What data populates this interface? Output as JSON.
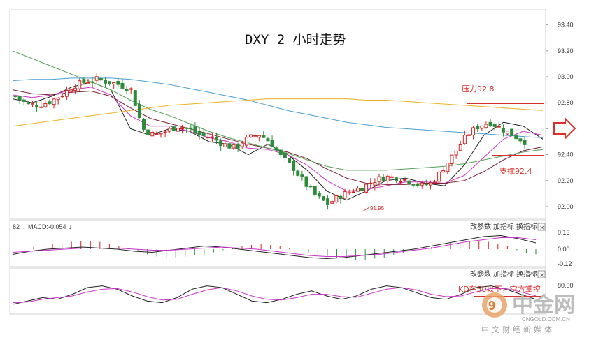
{
  "chart_data": [
    {
      "type": "candlestick",
      "title": "DXY 2 小时走势",
      "ylim": [
        91.95,
        93.45
      ],
      "y_ticks": [
        "93.40",
        "93.20",
        "93.00",
        "92.80",
        "92.60",
        "92.40",
        "92.20",
        "92.00"
      ],
      "close_path": [
        92.85,
        92.79,
        92.78,
        92.81,
        92.86,
        92.93,
        92.96,
        92.98,
        92.96,
        92.94,
        92.9,
        92.6,
        92.55,
        92.58,
        92.62,
        92.6,
        92.55,
        92.53,
        92.48,
        92.45,
        92.52,
        92.56,
        92.5,
        92.38,
        92.3,
        92.18,
        92.08,
        92.02,
        92.08,
        92.12,
        92.15,
        92.2,
        92.23,
        92.22,
        92.2,
        92.16,
        92.18,
        92.3,
        92.42,
        92.55,
        92.62,
        92.65,
        92.6,
        92.55,
        92.5
      ],
      "low_label": "91.95",
      "annotations": [
        {
          "id": "resistance",
          "label": "压力92.8",
          "value": 92.8,
          "color": "#d9302c"
        },
        {
          "id": "support",
          "label": "支撑92.4",
          "value": 92.4,
          "color": "#d9302c"
        }
      ],
      "ma_lines": [
        {
          "name": "MA5",
          "color": "#222222",
          "values": [
            92.83,
            92.8,
            92.85,
            92.92,
            92.96,
            92.9,
            92.6,
            92.55,
            92.6,
            92.58,
            92.5,
            92.48,
            92.4,
            92.48,
            92.4,
            92.28,
            92.12,
            92.05,
            92.12,
            92.2,
            92.22,
            92.18,
            92.16,
            92.32,
            92.55,
            92.65,
            92.62,
            92.52
          ]
        },
        {
          "name": "MA10",
          "color": "#cc33cc",
          "values": [
            92.86,
            92.84,
            92.86,
            92.9,
            92.92,
            92.86,
            92.7,
            92.62,
            92.62,
            92.58,
            92.53,
            92.5,
            92.45,
            92.44,
            92.4,
            92.32,
            92.2,
            92.12,
            92.13,
            92.16,
            92.19,
            92.19,
            92.18,
            92.24,
            92.38,
            92.52,
            92.58,
            92.55
          ]
        },
        {
          "name": "MA20",
          "color": "#7a1f33",
          "values": [
            92.9,
            92.87,
            92.86,
            92.88,
            92.89,
            92.85,
            92.76,
            92.68,
            92.64,
            92.6,
            92.56,
            92.52,
            92.48,
            92.45,
            92.42,
            92.37,
            92.29,
            92.22,
            92.18,
            92.17,
            92.17,
            92.18,
            92.18,
            92.2,
            92.27,
            92.36,
            92.43,
            92.46
          ]
        },
        {
          "name": "MA30",
          "color": "#55a055",
          "values": [
            93.2,
            93.14,
            93.08,
            93.02,
            92.96,
            92.9,
            92.82,
            92.75,
            92.7,
            92.64,
            92.58,
            92.53,
            92.49,
            92.45,
            92.41,
            92.36,
            92.31,
            92.28,
            92.28,
            92.28,
            92.29,
            92.3,
            92.31,
            92.33,
            92.36,
            92.39,
            92.42,
            92.44
          ]
        },
        {
          "name": "MA60",
          "color": "#4aa0d8",
          "values": [
            92.97,
            92.98,
            92.98,
            92.99,
            92.99,
            92.99,
            92.98,
            92.96,
            92.94,
            92.91,
            92.88,
            92.85,
            92.82,
            92.78,
            92.74,
            92.71,
            92.68,
            92.65,
            92.63,
            92.61,
            92.6,
            92.59,
            92.58,
            92.57,
            92.56,
            92.55,
            92.54,
            92.53
          ]
        },
        {
          "name": "MA120",
          "color": "#f0b020",
          "values": [
            92.62,
            92.64,
            92.66,
            92.68,
            92.7,
            92.72,
            92.74,
            92.76,
            92.78,
            92.79,
            92.8,
            92.81,
            92.82,
            92.83,
            92.83,
            92.83,
            92.83,
            92.83,
            92.82,
            92.82,
            92.81,
            92.8,
            92.79,
            92.78,
            92.77,
            92.76,
            92.75,
            92.74
          ]
        }
      ]
    },
    {
      "type": "histogram",
      "label": "MACD:-0.054",
      "y_ticks": [
        "0.13",
        "0.00",
        "-0.12"
      ],
      "histogram": [
        0.02,
        0.04,
        0.05,
        0.06,
        0.07,
        0.08,
        0.08,
        0.07,
        0.05,
        0.03,
        0.01,
        -0.02,
        -0.05,
        -0.07,
        -0.08,
        -0.08,
        -0.07,
        -0.06,
        -0.05,
        -0.03,
        -0.01,
        0.01,
        0.03,
        0.04,
        0.05,
        0.04,
        0.03,
        0.01,
        -0.01,
        -0.03,
        -0.05,
        -0.07,
        -0.08,
        -0.09,
        -0.1,
        -0.1,
        -0.09,
        -0.08,
        -0.06,
        -0.04,
        -0.02,
        0.0,
        0.02,
        0.04,
        0.06,
        0.07,
        0.08,
        0.08,
        0.07,
        0.05,
        0.03,
        -0.01,
        -0.04,
        -0.05
      ],
      "dif": [
        -0.05,
        -0.02,
        0.0,
        0.01,
        0.02,
        0.01,
        0.0,
        -0.02,
        -0.03,
        -0.01,
        0.01,
        0.03,
        0.02,
        0.0,
        -0.02,
        -0.04,
        -0.06,
        -0.08,
        -0.09,
        -0.08,
        -0.06,
        -0.04,
        -0.02,
        0.0,
        0.03,
        0.06,
        0.09,
        0.12,
        0.13,
        0.1,
        0.06
      ],
      "dea": [
        -0.03,
        -0.02,
        -0.01,
        0.0,
        0.01,
        0.01,
        0.01,
        0.0,
        -0.01,
        -0.01,
        0.0,
        0.01,
        0.02,
        0.01,
        0.0,
        -0.02,
        -0.04,
        -0.06,
        -0.07,
        -0.07,
        -0.06,
        -0.05,
        -0.03,
        -0.01,
        0.01,
        0.04,
        0.07,
        0.09,
        0.11,
        0.11,
        0.09
      ]
    },
    {
      "type": "line",
      "label": "KD在50以下，空方掌控",
      "y_ticks": [
        "80.00"
      ],
      "k": [
        25,
        35,
        45,
        40,
        55,
        75,
        80,
        70,
        50,
        35,
        30,
        45,
        70,
        80,
        75,
        55,
        35,
        30,
        40,
        55,
        65,
        50,
        40,
        50,
        70,
        80,
        75,
        60,
        45,
        40,
        55,
        75,
        80,
        70,
        55,
        40
      ],
      "d": [
        30,
        32,
        40,
        45,
        50,
        62,
        70,
        72,
        62,
        48,
        38,
        40,
        55,
        68,
        75,
        65,
        50,
        40,
        38,
        45,
        55,
        55,
        48,
        46,
        58,
        70,
        75,
        68,
        55,
        48,
        50,
        62,
        72,
        72,
        62,
        50
      ]
    }
  ],
  "panels": {
    "macd_prefix": "82",
    "macd_label": "MACD:-0.054",
    "buttons": [
      "改参数",
      "加指标",
      "换指标"
    ],
    "close": "×"
  },
  "watermark": {
    "cn": "中金网",
    "domain": "CNGOLD.COM.CN",
    "tagline": "中文财经新媒体"
  },
  "colors": {
    "up": "#cc2222",
    "down": "#2e8b3a",
    "annotation": "#d9302c"
  },
  "icons": {
    "arrow": "right-arrow-icon",
    "logo": "cngold-logo-icon"
  }
}
